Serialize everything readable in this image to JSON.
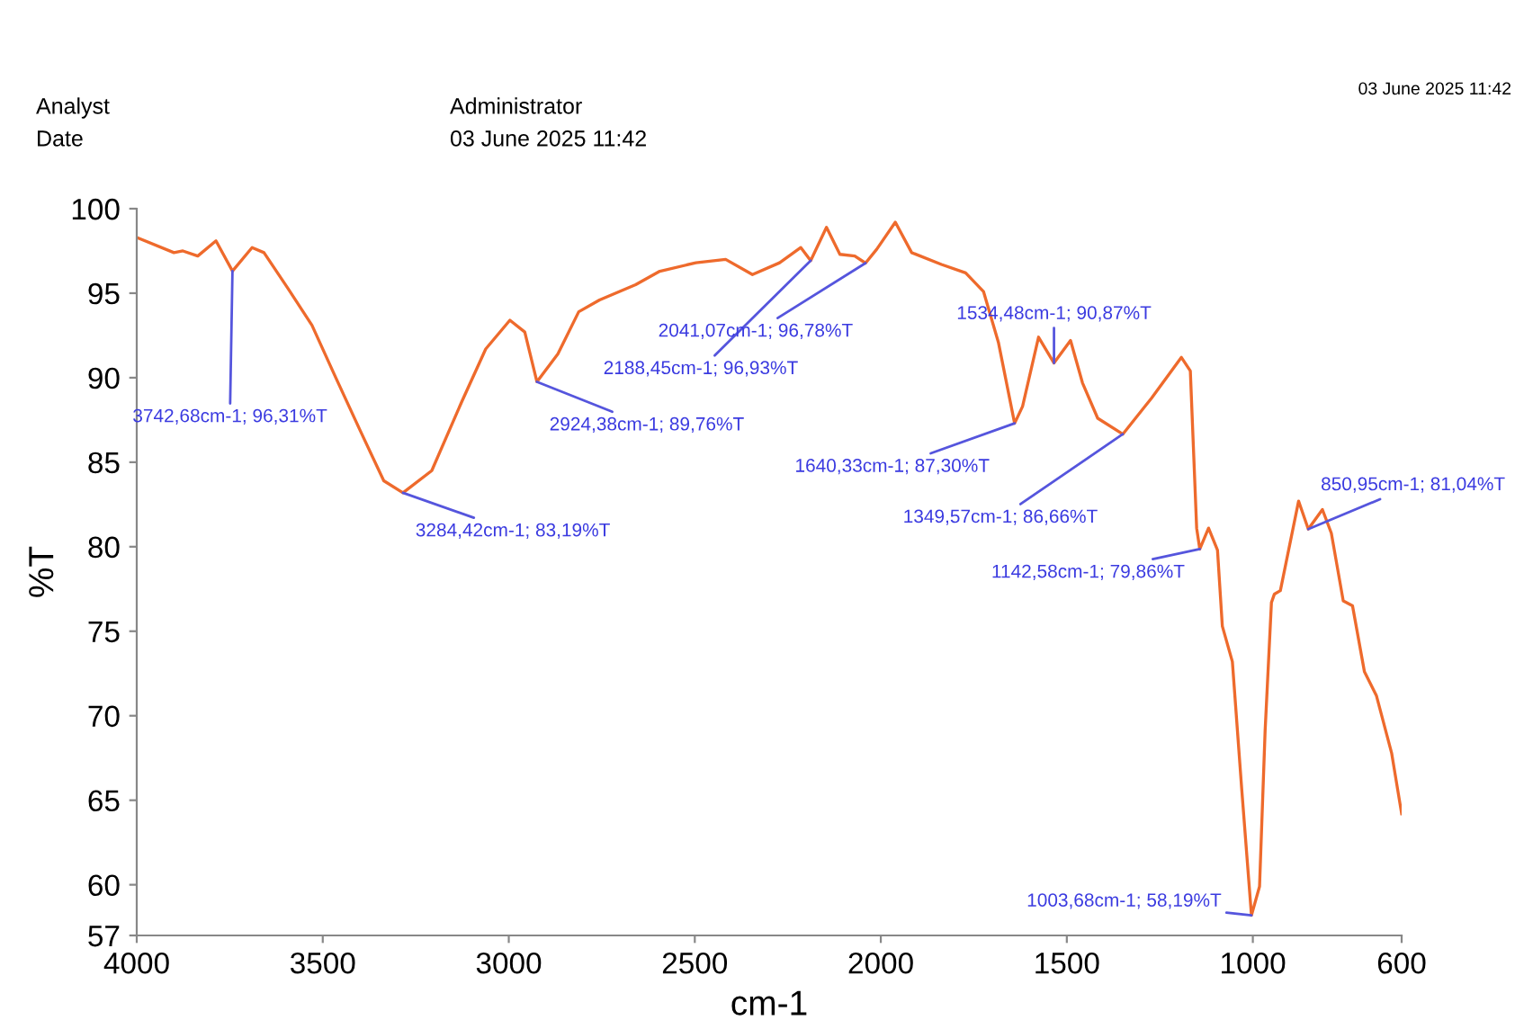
{
  "chart_data": {
    "type": "line",
    "xlabel": "cm-1",
    "ylabel": "%T",
    "xlim": [
      4000,
      600
    ],
    "xticks": [
      4000,
      3500,
      3000,
      2500,
      2000,
      1500,
      1000,
      600
    ],
    "ylim": [
      57,
      100
    ],
    "yticks": [
      57,
      60,
      65,
      70,
      75,
      80,
      85,
      90,
      95,
      100
    ],
    "grid": false,
    "legend": false,
    "marker": "none",
    "line_style": "solid",
    "series": [
      {
        "color": "#ee6a2c",
        "x": [
          4000,
          3900,
          3876,
          3836,
          3787,
          3742.68,
          3690,
          3658,
          3594,
          3529,
          3465,
          3400,
          3336,
          3284.42,
          3207,
          3126,
          3062,
          2997,
          2957,
          2924.38,
          2868,
          2812,
          2756,
          2659,
          2594,
          2497,
          2417,
          2345,
          2272,
          2215,
          2188.45,
          2146,
          2110,
          2070,
          2041.07,
          2011,
          1961,
          1917,
          1837,
          1772,
          1724,
          1684,
          1640.33,
          1619,
          1576,
          1534.48,
          1490,
          1458,
          1417,
          1349.57,
          1272,
          1192,
          1168,
          1151,
          1142.58,
          1119,
          1095,
          1082,
          1055,
          1030,
          1003.68,
          982,
          967,
          950,
          942,
          926,
          877,
          850.95,
          813,
          789,
          757,
          732,
          700,
          668,
          627,
          600
        ],
        "values": [
          98.3,
          97.4,
          97.5,
          97.2,
          98.1,
          96.31,
          97.7,
          97.4,
          95.3,
          93.1,
          90.0,
          86.9,
          83.9,
          83.19,
          84.5,
          88.6,
          91.7,
          93.4,
          92.7,
          89.76,
          91.4,
          93.9,
          94.6,
          95.5,
          96.3,
          96.8,
          97.0,
          96.1,
          96.8,
          97.7,
          96.93,
          98.9,
          97.3,
          97.2,
          96.78,
          97.6,
          99.2,
          97.4,
          96.7,
          96.2,
          95.1,
          92.1,
          87.3,
          88.3,
          92.4,
          90.87,
          92.2,
          89.7,
          87.6,
          86.66,
          88.8,
          91.2,
          90.4,
          81.1,
          79.86,
          81.1,
          79.8,
          75.3,
          73.2,
          65.7,
          58.19,
          59.9,
          69.1,
          76.7,
          77.2,
          77.4,
          82.7,
          81.04,
          82.2,
          80.8,
          76.8,
          76.5,
          72.6,
          71.2,
          67.8,
          64.2
        ]
      }
    ],
    "annotations": [
      "Analyst",
      "Administrator",
      "Date",
      "03 June 2025 11:42",
      "03 June 2025 11:42",
      {
        "text": "3742,68cm-1; 96,31%T",
        "x": 3742.68,
        "y": 96.31
      },
      {
        "text": "3284,42cm-1; 83,19%T",
        "x": 3284.42,
        "y": 83.19
      },
      {
        "text": "2924,38cm-1; 89,76%T",
        "x": 2924.38,
        "y": 89.76
      },
      {
        "text": "2188,45cm-1; 96,93%T",
        "x": 2188.45,
        "y": 96.93
      },
      {
        "text": "2041,07cm-1; 96,78%T",
        "x": 2041.07,
        "y": 96.78
      },
      {
        "text": "1640,33cm-1; 87,30%T",
        "x": 1640.33,
        "y": 87.3
      },
      {
        "text": "1534,48cm-1; 90,87%T",
        "x": 1534.48,
        "y": 90.87
      },
      {
        "text": "1349,57cm-1; 86,66%T",
        "x": 1349.57,
        "y": 86.66
      },
      {
        "text": "1142,58cm-1; 79,86%T",
        "x": 1142.58,
        "y": 79.86
      },
      {
        "text": "850,95cm-1; 81,04%T",
        "x": 850.95,
        "y": 81.04
      },
      {
        "text": "1003,68cm-1; 58,19%T",
        "x": 1003.68,
        "y": 58.19
      }
    ]
  }
}
